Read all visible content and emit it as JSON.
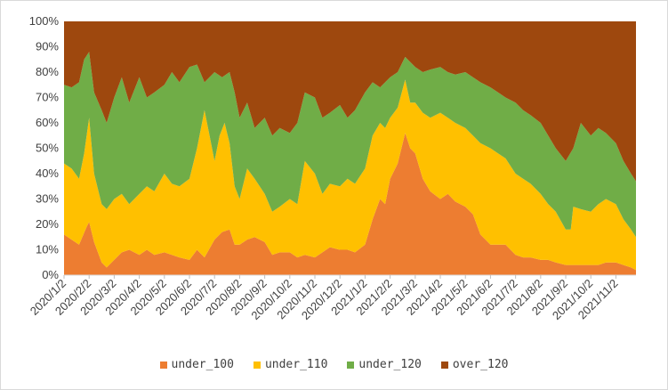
{
  "chart_data": {
    "type": "area",
    "stacked": "percent",
    "title": "",
    "xlabel": "",
    "ylabel": "",
    "ylim": [
      0,
      100
    ],
    "yticks": [
      "0%",
      "10%",
      "20%",
      "30%",
      "40%",
      "50%",
      "60%",
      "70%",
      "80%",
      "90%",
      "100%"
    ],
    "categories": [
      "2020/1/2",
      "2020/2/2",
      "2020/3/2",
      "2020/4/2",
      "2020/5/2",
      "2020/6/2",
      "2020/7/2",
      "2020/8/2",
      "2020/9/2",
      "2020/10/2",
      "2020/11/2",
      "2020/12/2",
      "2021/1/2",
      "2021/2/2",
      "2021/3/2",
      "2021/4/2",
      "2021/5/2",
      "2021/6/2",
      "2021/7/2",
      "2021/8/2",
      "2021/9/2",
      "2021/10/2",
      "2021/11/2"
    ],
    "x_positions": [
      0,
      1,
      2,
      3,
      4,
      5,
      6,
      7,
      8,
      9,
      10,
      11,
      12,
      13,
      14,
      15,
      16,
      17,
      18,
      19,
      20,
      21,
      22
    ],
    "x_end": 22.8,
    "legend_position": "bottom",
    "grid": false,
    "series": [
      {
        "name": "under_100",
        "color": "#ED7D31",
        "points": [
          [
            0,
            16
          ],
          [
            0.3,
            14
          ],
          [
            0.6,
            12
          ],
          [
            0.9,
            19
          ],
          [
            1.0,
            21
          ],
          [
            1.2,
            13
          ],
          [
            1.5,
            5
          ],
          [
            1.7,
            3
          ],
          [
            2.0,
            6
          ],
          [
            2.3,
            9
          ],
          [
            2.6,
            10
          ],
          [
            3.0,
            8
          ],
          [
            3.3,
            10
          ],
          [
            3.6,
            8
          ],
          [
            4.0,
            9
          ],
          [
            4.3,
            8
          ],
          [
            4.6,
            7
          ],
          [
            5.0,
            6
          ],
          [
            5.3,
            10
          ],
          [
            5.6,
            7
          ],
          [
            6.0,
            14
          ],
          [
            6.3,
            17
          ],
          [
            6.6,
            18
          ],
          [
            6.8,
            12
          ],
          [
            7.0,
            12
          ],
          [
            7.3,
            14
          ],
          [
            7.6,
            15
          ],
          [
            8.0,
            13
          ],
          [
            8.3,
            8
          ],
          [
            8.6,
            9
          ],
          [
            9.0,
            9
          ],
          [
            9.3,
            7
          ],
          [
            9.6,
            8
          ],
          [
            10.0,
            7
          ],
          [
            10.3,
            9
          ],
          [
            10.6,
            11
          ],
          [
            11.0,
            10
          ],
          [
            11.3,
            10
          ],
          [
            11.6,
            9
          ],
          [
            12.0,
            12
          ],
          [
            12.3,
            22
          ],
          [
            12.6,
            30
          ],
          [
            12.8,
            28
          ],
          [
            13.0,
            38
          ],
          [
            13.3,
            44
          ],
          [
            13.6,
            56
          ],
          [
            13.8,
            50
          ],
          [
            14.0,
            48
          ],
          [
            14.3,
            38
          ],
          [
            14.6,
            33
          ],
          [
            15.0,
            30
          ],
          [
            15.3,
            32
          ],
          [
            15.6,
            29
          ],
          [
            16.0,
            27
          ],
          [
            16.3,
            24
          ],
          [
            16.6,
            16
          ],
          [
            17.0,
            12
          ],
          [
            17.3,
            12
          ],
          [
            17.6,
            12
          ],
          [
            18.0,
            8
          ],
          [
            18.3,
            7
          ],
          [
            18.6,
            7
          ],
          [
            19.0,
            6
          ],
          [
            19.3,
            6
          ],
          [
            19.6,
            5
          ],
          [
            20.0,
            4
          ],
          [
            20.3,
            4
          ],
          [
            20.6,
            4
          ],
          [
            21.0,
            4
          ],
          [
            21.3,
            4
          ],
          [
            21.6,
            5
          ],
          [
            22.0,
            5
          ],
          [
            22.3,
            4
          ],
          [
            22.6,
            3
          ],
          [
            22.8,
            2
          ]
        ]
      },
      {
        "name": "under_110",
        "color": "#FFC000",
        "points": [
          [
            0,
            44
          ],
          [
            0.3,
            42
          ],
          [
            0.6,
            38
          ],
          [
            0.8,
            48
          ],
          [
            1.0,
            62
          ],
          [
            1.2,
            40
          ],
          [
            1.5,
            28
          ],
          [
            1.7,
            26
          ],
          [
            2.0,
            30
          ],
          [
            2.3,
            32
          ],
          [
            2.6,
            28
          ],
          [
            3.0,
            32
          ],
          [
            3.3,
            35
          ],
          [
            3.6,
            33
          ],
          [
            4.0,
            40
          ],
          [
            4.3,
            36
          ],
          [
            4.6,
            35
          ],
          [
            5.0,
            38
          ],
          [
            5.3,
            50
          ],
          [
            5.6,
            65
          ],
          [
            5.8,
            55
          ],
          [
            6.0,
            45
          ],
          [
            6.2,
            55
          ],
          [
            6.4,
            60
          ],
          [
            6.6,
            52
          ],
          [
            6.8,
            35
          ],
          [
            7.0,
            30
          ],
          [
            7.3,
            42
          ],
          [
            7.6,
            38
          ],
          [
            8.0,
            32
          ],
          [
            8.3,
            25
          ],
          [
            8.6,
            27
          ],
          [
            9.0,
            30
          ],
          [
            9.3,
            28
          ],
          [
            9.6,
            45
          ],
          [
            10.0,
            40
          ],
          [
            10.3,
            32
          ],
          [
            10.6,
            36
          ],
          [
            11.0,
            35
          ],
          [
            11.3,
            38
          ],
          [
            11.6,
            36
          ],
          [
            12.0,
            42
          ],
          [
            12.3,
            55
          ],
          [
            12.6,
            60
          ],
          [
            12.8,
            58
          ],
          [
            13.0,
            62
          ],
          [
            13.3,
            66
          ],
          [
            13.6,
            77
          ],
          [
            13.8,
            68
          ],
          [
            14.0,
            68
          ],
          [
            14.3,
            64
          ],
          [
            14.6,
            62
          ],
          [
            15.0,
            64
          ],
          [
            15.3,
            62
          ],
          [
            15.6,
            60
          ],
          [
            16.0,
            58
          ],
          [
            16.3,
            55
          ],
          [
            16.6,
            52
          ],
          [
            17.0,
            50
          ],
          [
            17.3,
            48
          ],
          [
            17.6,
            46
          ],
          [
            18.0,
            40
          ],
          [
            18.3,
            38
          ],
          [
            18.6,
            36
          ],
          [
            19.0,
            32
          ],
          [
            19.3,
            28
          ],
          [
            19.6,
            25
          ],
          [
            20.0,
            18
          ],
          [
            20.2,
            18
          ],
          [
            20.3,
            27
          ],
          [
            20.6,
            26
          ],
          [
            21.0,
            25
          ],
          [
            21.3,
            28
          ],
          [
            21.6,
            30
          ],
          [
            22.0,
            28
          ],
          [
            22.3,
            22
          ],
          [
            22.6,
            18
          ],
          [
            22.8,
            15
          ]
        ]
      },
      {
        "name": "under_120",
        "color": "#70AD47",
        "points": [
          [
            0,
            75
          ],
          [
            0.3,
            74
          ],
          [
            0.6,
            76
          ],
          [
            0.8,
            85
          ],
          [
            1.0,
            88
          ],
          [
            1.2,
            72
          ],
          [
            1.5,
            65
          ],
          [
            1.7,
            60
          ],
          [
            2.0,
            70
          ],
          [
            2.3,
            78
          ],
          [
            2.6,
            68
          ],
          [
            3.0,
            78
          ],
          [
            3.3,
            70
          ],
          [
            3.6,
            72
          ],
          [
            4.0,
            75
          ],
          [
            4.3,
            80
          ],
          [
            4.6,
            76
          ],
          [
            5.0,
            82
          ],
          [
            5.3,
            83
          ],
          [
            5.6,
            76
          ],
          [
            6.0,
            80
          ],
          [
            6.3,
            78
          ],
          [
            6.6,
            80
          ],
          [
            6.8,
            72
          ],
          [
            7.0,
            62
          ],
          [
            7.3,
            68
          ],
          [
            7.6,
            58
          ],
          [
            8.0,
            62
          ],
          [
            8.3,
            55
          ],
          [
            8.6,
            58
          ],
          [
            9.0,
            56
          ],
          [
            9.3,
            60
          ],
          [
            9.6,
            72
          ],
          [
            10.0,
            70
          ],
          [
            10.3,
            62
          ],
          [
            10.6,
            64
          ],
          [
            11.0,
            67
          ],
          [
            11.3,
            62
          ],
          [
            11.6,
            65
          ],
          [
            12.0,
            72
          ],
          [
            12.3,
            76
          ],
          [
            12.6,
            74
          ],
          [
            12.8,
            76
          ],
          [
            13.0,
            78
          ],
          [
            13.3,
            80
          ],
          [
            13.6,
            86
          ],
          [
            13.8,
            84
          ],
          [
            14.0,
            82
          ],
          [
            14.3,
            80
          ],
          [
            14.6,
            81
          ],
          [
            15.0,
            82
          ],
          [
            15.3,
            80
          ],
          [
            15.6,
            79
          ],
          [
            16.0,
            80
          ],
          [
            16.3,
            78
          ],
          [
            16.6,
            76
          ],
          [
            17.0,
            74
          ],
          [
            17.3,
            72
          ],
          [
            17.6,
            70
          ],
          [
            18.0,
            68
          ],
          [
            18.3,
            65
          ],
          [
            18.6,
            63
          ],
          [
            19.0,
            60
          ],
          [
            19.3,
            55
          ],
          [
            19.6,
            50
          ],
          [
            20.0,
            45
          ],
          [
            20.3,
            50
          ],
          [
            20.6,
            60
          ],
          [
            21.0,
            55
          ],
          [
            21.3,
            58
          ],
          [
            21.6,
            56
          ],
          [
            22.0,
            52
          ],
          [
            22.3,
            45
          ],
          [
            22.6,
            40
          ],
          [
            22.8,
            37
          ]
        ]
      },
      {
        "name": "over_120",
        "color": "#9E480E",
        "points": [
          [
            0,
            100
          ],
          [
            22.8,
            100
          ]
        ]
      }
    ]
  }
}
